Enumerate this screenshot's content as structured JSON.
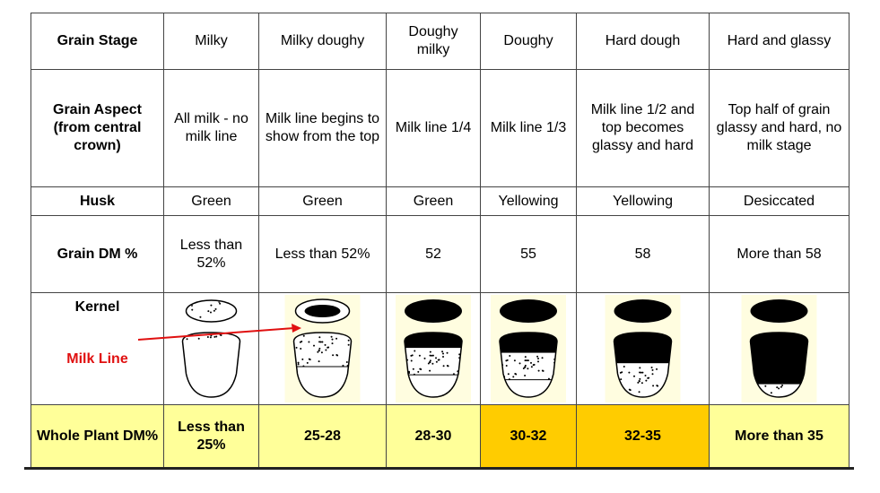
{
  "table": {
    "headers": {
      "stage": "Grain Stage",
      "aspect": "Grain Aspect (from central crown)",
      "husk": "Husk",
      "dm": "Grain DM %",
      "kernel": "Kernel",
      "milk_line": "Milk Line",
      "whole": "Whole Plant DM%"
    },
    "stages": [
      {
        "stage": "Milky",
        "aspect": "All milk - no milk line",
        "husk": "Green",
        "dm": "Less than 52%",
        "whole": "Less than 25%"
      },
      {
        "stage": "Milky doughy",
        "aspect": "Milk line begins to show from the top",
        "husk": "Green",
        "dm": "Less than 52%",
        "whole": "25-28"
      },
      {
        "stage": "Doughy milky",
        "aspect": "Milk line 1/4",
        "husk": "Green",
        "dm": "52",
        "whole": "28-30"
      },
      {
        "stage": "Doughy",
        "aspect": "Milk line 1/3",
        "husk": "Yellowing",
        "dm": "55",
        "whole": "30-32"
      },
      {
        "stage": "Hard dough",
        "aspect": "Milk line 1/2 and top becomes glassy and hard",
        "husk": "Yellowing",
        "dm": "58",
        "whole": "32-35"
      },
      {
        "stage": "Hard and glassy",
        "aspect": "Top half of grain glassy and hard, no milk stage",
        "husk": "Desiccated",
        "dm": "More than 58",
        "whole": "More than 35"
      }
    ]
  },
  "colors": {
    "whole_row_bg": "#ffff99",
    "whole_highlight_bg": "#ffcc00",
    "milk_line_label": "#e01010",
    "kernel_dark": "#000000",
    "kernel_backdrop": "#fffde0"
  },
  "kernel_milk_line_fraction": [
    0,
    0,
    0.25,
    0.33,
    0.5,
    1
  ],
  "highlighted_columns": [
    3,
    4
  ]
}
